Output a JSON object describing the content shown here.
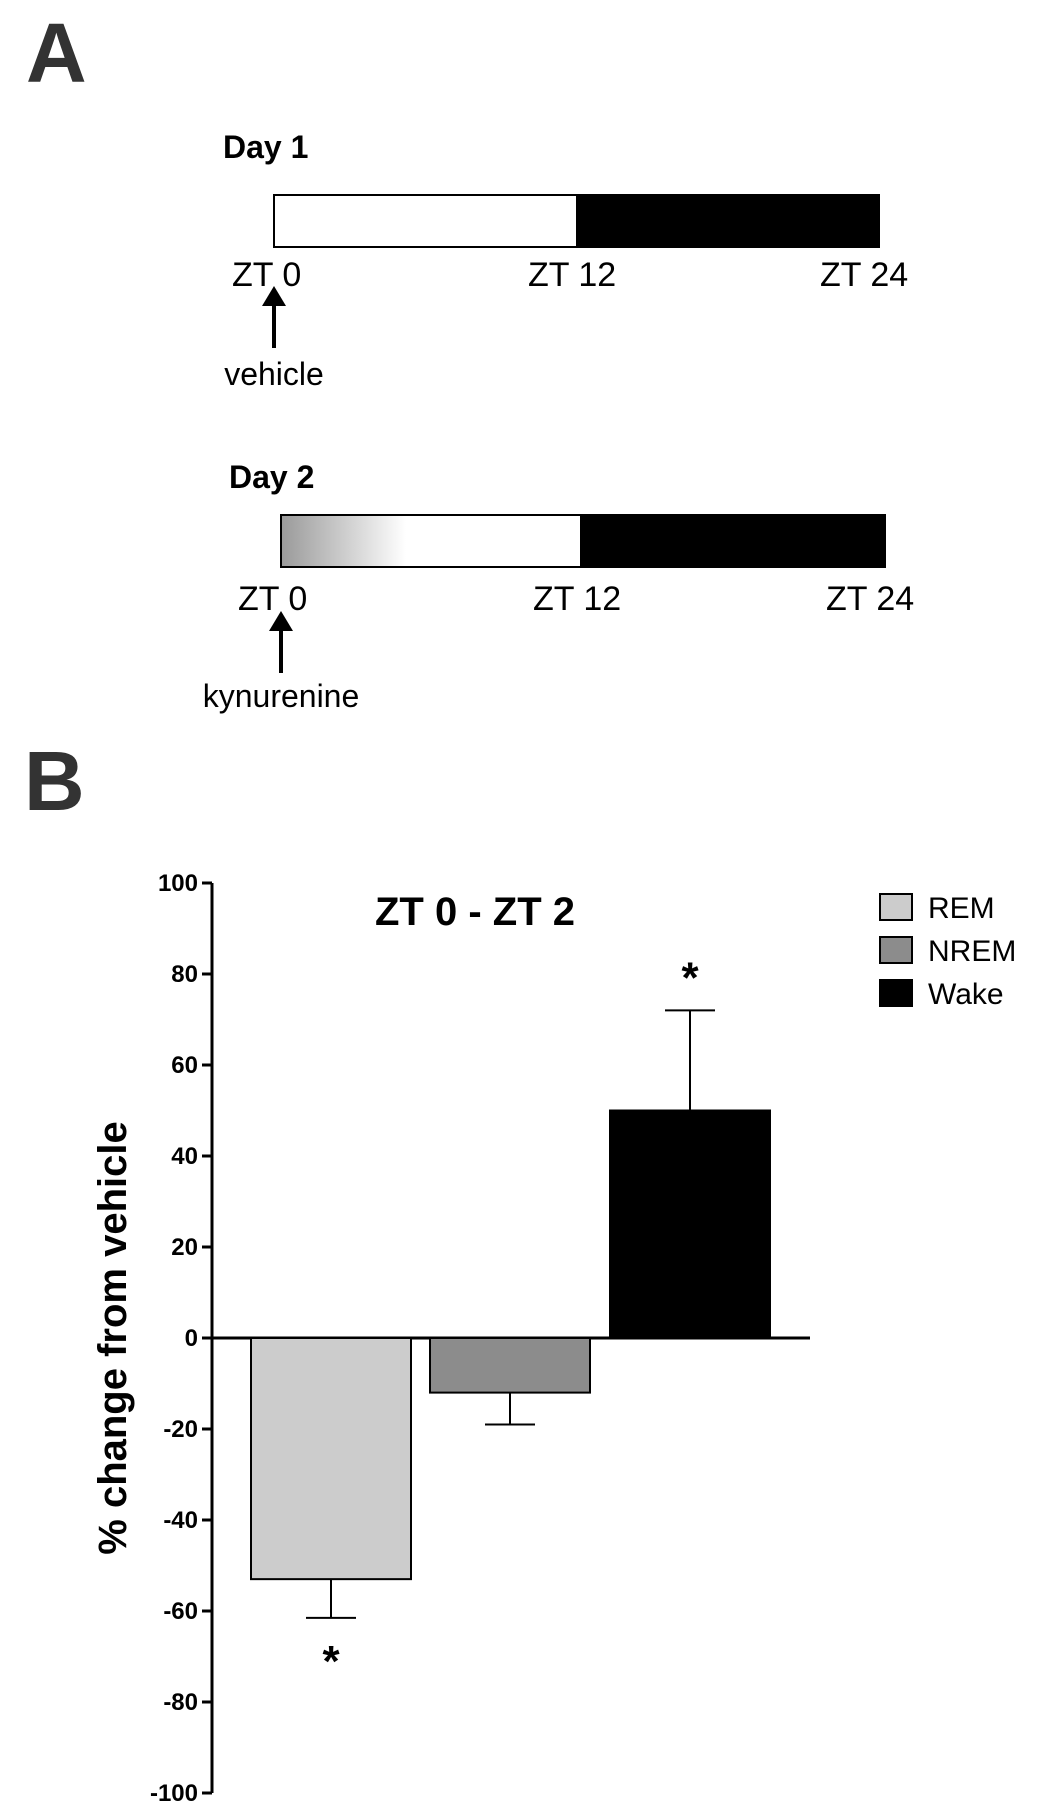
{
  "panel_a": {
    "letter": "A",
    "days": [
      {
        "title": "Day 1",
        "tick_labels": [
          "ZT 0",
          "ZT 12",
          "ZT 24"
        ],
        "treatment": "vehicle",
        "gradient": false
      },
      {
        "title": "Day 2",
        "tick_labels": [
          "ZT 0",
          "ZT 12",
          "ZT 24"
        ],
        "treatment": "kynurenine",
        "gradient": true
      }
    ]
  },
  "panel_b": {
    "letter": "B"
  },
  "chart_data": {
    "type": "bar",
    "title": "ZT 0 - ZT 2",
    "ylabel": "% change from vehicle",
    "xlabel": "",
    "ylim": [
      -100,
      100
    ],
    "yticks": [
      100,
      80,
      60,
      40,
      20,
      0,
      -20,
      -40,
      -60,
      -80,
      -100
    ],
    "categories": [
      "REM",
      "NREM",
      "Wake"
    ],
    "values": [
      -53,
      -12,
      50
    ],
    "errors": [
      8.5,
      7,
      22
    ],
    "colors": [
      "#cccccc",
      "#8c8c8c",
      "#000000"
    ],
    "significance": [
      "*",
      "",
      "*"
    ],
    "legend": {
      "position": "top-right",
      "entries": [
        "REM",
        "NREM",
        "Wake"
      ]
    },
    "grid": false
  }
}
